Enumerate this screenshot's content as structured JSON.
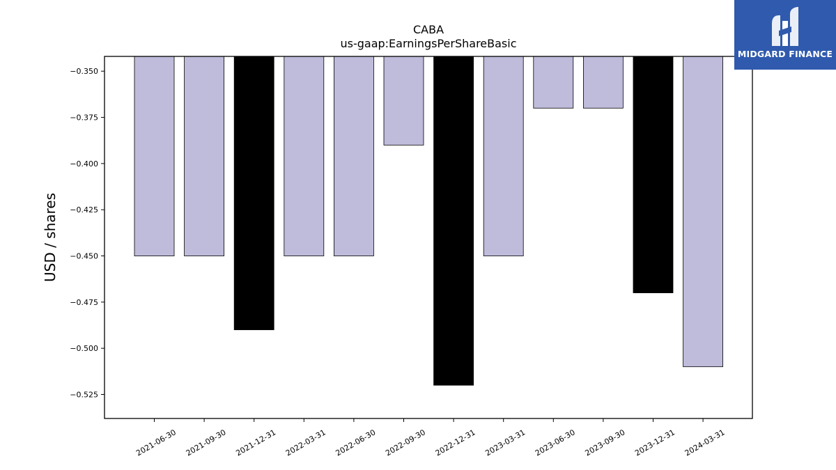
{
  "chart_data": {
    "type": "bar",
    "title": "CABA",
    "subtitle": "us-gaap:EarningsPerShareBasic",
    "xlabel": "",
    "ylabel": "USD / shares",
    "ylim": [
      -0.538,
      -0.342
    ],
    "yticks": [
      -0.35,
      -0.375,
      -0.4,
      -0.425,
      -0.45,
      -0.475,
      -0.5,
      -0.525
    ],
    "ytick_labels": [
      "−0.350",
      "−0.375",
      "−0.400",
      "−0.425",
      "−0.450",
      "−0.475",
      "−0.500",
      "−0.525"
    ],
    "categories": [
      "2021-06-30",
      "2021-09-30",
      "2021-12-31",
      "2022-03-31",
      "2022-06-30",
      "2022-09-30",
      "2022-12-31",
      "2023-03-31",
      "2023-06-30",
      "2023-09-30",
      "2023-12-31",
      "2024-03-31"
    ],
    "values": [
      -0.45,
      -0.45,
      -0.49,
      -0.45,
      -0.45,
      -0.39,
      -0.52,
      -0.45,
      -0.37,
      -0.37,
      -0.47,
      -0.51
    ],
    "bar_colors": [
      "#bebbdb",
      "#bebbdb",
      "#000000",
      "#bebbdb",
      "#bebbdb",
      "#bebbdb",
      "#000000",
      "#bebbdb",
      "#bebbdb",
      "#bebbdb",
      "#000000",
      "#bebbdb"
    ],
    "grid": false,
    "legend": "none"
  },
  "logo": {
    "text": "MIDGARD FINANCE",
    "background": "#2f5aad",
    "icon": "midgard-logo-icon"
  }
}
